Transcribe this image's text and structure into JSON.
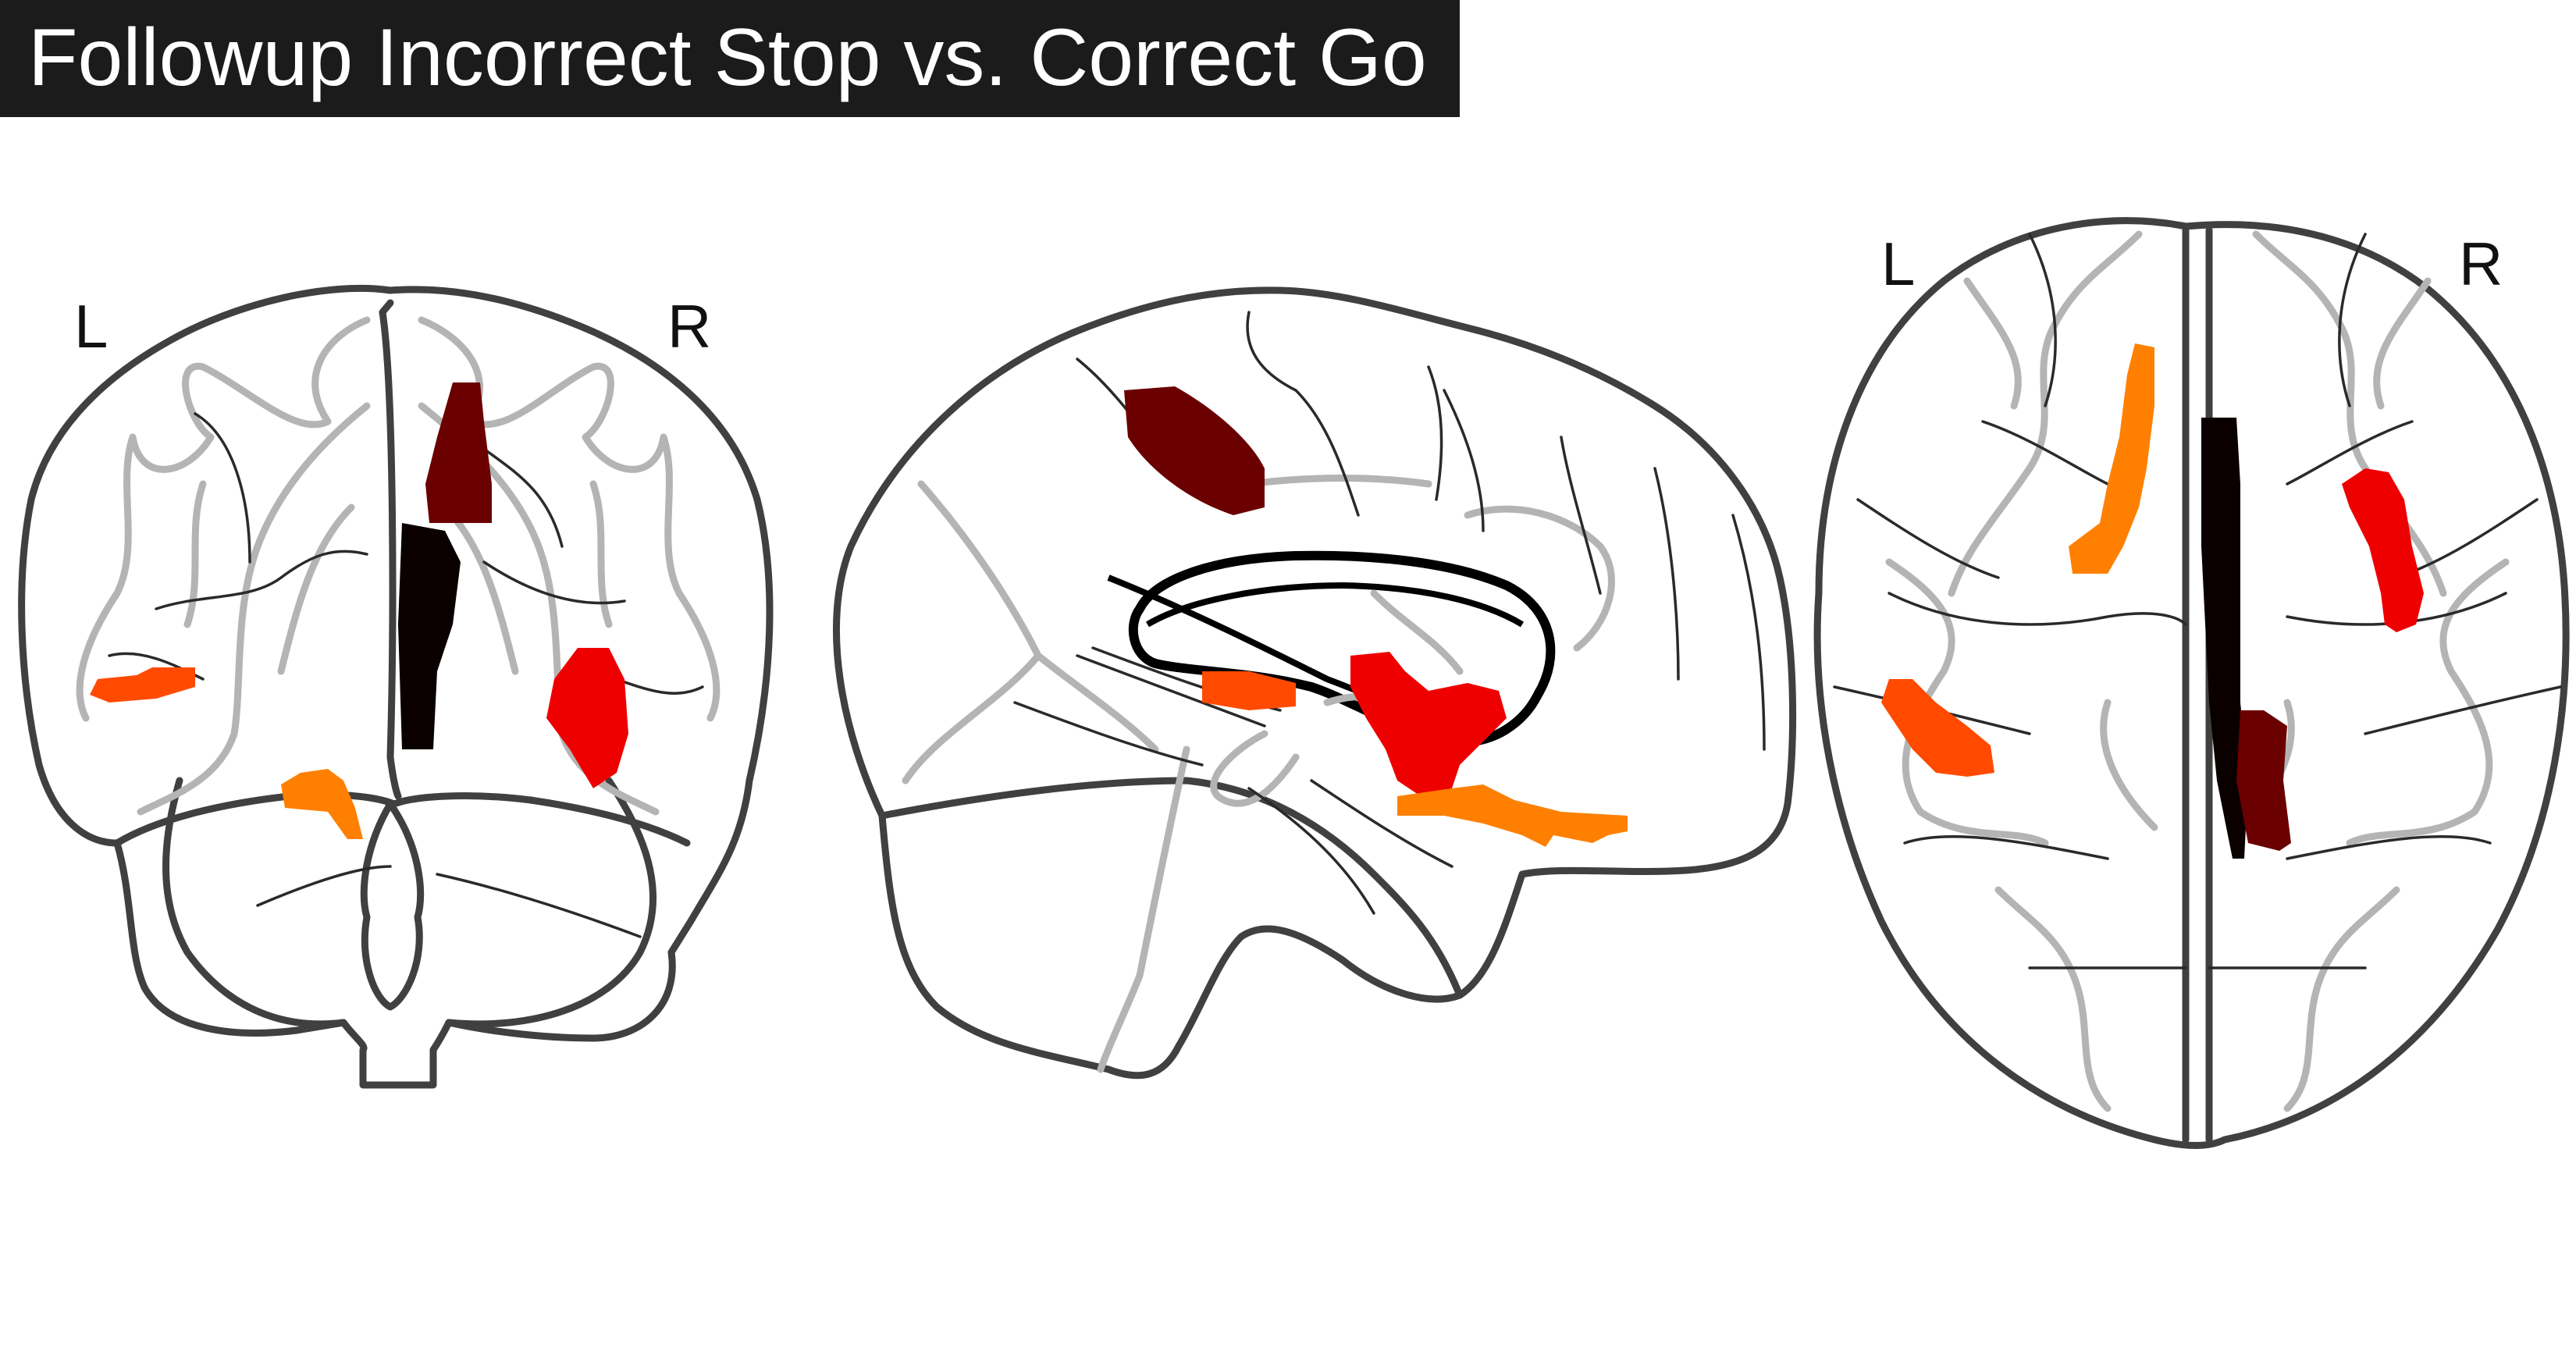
{
  "title": "Followup Incorrect Stop vs. Correct Go",
  "views": {
    "coronal": {
      "left_label": "L",
      "right_label": "R"
    },
    "axial": {
      "left_label": "L",
      "right_label": "R"
    }
  },
  "colors": {
    "title_background": "#1b1b1b",
    "title_text": "#ffffff",
    "brain_outline": "#404040",
    "cluster_dark_red": "#6b0000",
    "cluster_black": "#0a0000",
    "cluster_red": "#ee0000",
    "cluster_orange_red": "#ff4a00",
    "cluster_orange": "#ff8000"
  }
}
